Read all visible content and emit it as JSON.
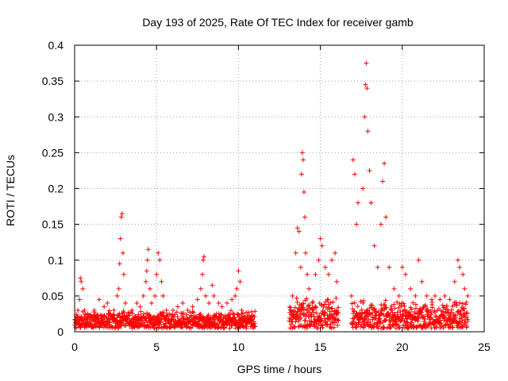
{
  "chart_data": {
    "type": "scatter",
    "title": "Day 193 of 2025, Rate Of TEC Index for receiver gamb",
    "xlabel": "GPS time / hours",
    "ylabel": "ROTI / TECUs",
    "xlim": [
      0,
      25
    ],
    "ylim": [
      0,
      0.4
    ],
    "xticks": [
      0,
      5,
      10,
      15,
      20,
      25
    ],
    "yticks": [
      0,
      0.05,
      0.1,
      0.15,
      0.2,
      0.25,
      0.3,
      0.35,
      0.4
    ],
    "xtick_labels": [
      "0",
      "5",
      "10",
      "15",
      "20",
      "25"
    ],
    "ytick_labels": [
      "0",
      "0.05",
      "0.1",
      "0.15",
      "0.2",
      "0.25",
      "0.3",
      "0.35",
      "0.4"
    ],
    "grid": true,
    "marker": "+",
    "color": "#ff0000",
    "series": [
      {
        "name": "ROTI",
        "points": [
          [
            0.1,
            0.02
          ],
          [
            0.2,
            0.03
          ],
          [
            0.3,
            0.045
          ],
          [
            0.35,
            0.075
          ],
          [
            0.4,
            0.07
          ],
          [
            0.5,
            0.06
          ],
          [
            0.6,
            0.03
          ],
          [
            0.8,
            0.025
          ],
          [
            1.0,
            0.02
          ],
          [
            1.2,
            0.03
          ],
          [
            1.5,
            0.045
          ],
          [
            1.8,
            0.035
          ],
          [
            2.0,
            0.04
          ],
          [
            2.2,
            0.025
          ],
          [
            2.4,
            0.03
          ],
          [
            2.6,
            0.05
          ],
          [
            2.7,
            0.06
          ],
          [
            2.75,
            0.095
          ],
          [
            2.8,
            0.13
          ],
          [
            2.85,
            0.16
          ],
          [
            2.9,
            0.165
          ],
          [
            2.95,
            0.11
          ],
          [
            3.0,
            0.08
          ],
          [
            3.1,
            0.04
          ],
          [
            3.3,
            0.025
          ],
          [
            3.5,
            0.03
          ],
          [
            3.8,
            0.04
          ],
          [
            4.0,
            0.035
          ],
          [
            4.2,
            0.05
          ],
          [
            4.35,
            0.07
          ],
          [
            4.4,
            0.085
          ],
          [
            4.45,
            0.1
          ],
          [
            4.5,
            0.115
          ],
          [
            4.6,
            0.06
          ],
          [
            4.7,
            0.04
          ],
          [
            4.9,
            0.05
          ],
          [
            5.0,
            0.08
          ],
          [
            5.1,
            0.11
          ],
          [
            5.2,
            0.1
          ],
          [
            5.3,
            0.07
          ],
          [
            5.4,
            0.05
          ],
          [
            5.6,
            0.03
          ],
          [
            5.8,
            0.025
          ],
          [
            6.0,
            0.03
          ],
          [
            6.3,
            0.035
          ],
          [
            6.6,
            0.04
          ],
          [
            6.9,
            0.03
          ],
          [
            7.2,
            0.035
          ],
          [
            7.5,
            0.045
          ],
          [
            7.7,
            0.06
          ],
          [
            7.8,
            0.08
          ],
          [
            7.85,
            0.1
          ],
          [
            7.9,
            0.105
          ],
          [
            8.0,
            0.05
          ],
          [
            8.2,
            0.04
          ],
          [
            8.4,
            0.065
          ],
          [
            8.5,
            0.05
          ],
          [
            8.8,
            0.04
          ],
          [
            9.0,
            0.035
          ],
          [
            9.3,
            0.04
          ],
          [
            9.6,
            0.045
          ],
          [
            9.8,
            0.05
          ],
          [
            9.9,
            0.06
          ],
          [
            10.0,
            0.085
          ],
          [
            10.1,
            0.07
          ],
          [
            10.2,
            0.03
          ],
          [
            10.4,
            0.02
          ],
          [
            10.6,
            0.015
          ],
          [
            10.8,
            0.015
          ],
          [
            11.0,
            0.012
          ],
          [
            13.1,
            0.015
          ],
          [
            13.3,
            0.05
          ],
          [
            13.5,
            0.11
          ],
          [
            13.6,
            0.145
          ],
          [
            13.7,
            0.14
          ],
          [
            13.8,
            0.09
          ],
          [
            13.85,
            0.22
          ],
          [
            13.9,
            0.25
          ],
          [
            13.95,
            0.24
          ],
          [
            14.0,
            0.195
          ],
          [
            14.05,
            0.16
          ],
          [
            14.1,
            0.11
          ],
          [
            14.2,
            0.08
          ],
          [
            14.3,
            0.06
          ],
          [
            14.5,
            0.04
          ],
          [
            14.7,
            0.08
          ],
          [
            14.9,
            0.1
          ],
          [
            15.0,
            0.13
          ],
          [
            15.1,
            0.12
          ],
          [
            15.3,
            0.09
          ],
          [
            15.5,
            0.08
          ],
          [
            15.7,
            0.1
          ],
          [
            15.9,
            0.11
          ],
          [
            16.0,
            0.07
          ],
          [
            16.9,
            0.05
          ],
          [
            17.0,
            0.24
          ],
          [
            17.1,
            0.22
          ],
          [
            17.2,
            0.15
          ],
          [
            17.3,
            0.18
          ],
          [
            17.6,
            0.2
          ],
          [
            17.7,
            0.3
          ],
          [
            17.75,
            0.345
          ],
          [
            17.8,
            0.375
          ],
          [
            17.85,
            0.34
          ],
          [
            17.9,
            0.28
          ],
          [
            18.0,
            0.225
          ],
          [
            18.1,
            0.18
          ],
          [
            18.3,
            0.12
          ],
          [
            18.5,
            0.09
          ],
          [
            18.7,
            0.15
          ],
          [
            18.8,
            0.21
          ],
          [
            18.9,
            0.235
          ],
          [
            19.0,
            0.16
          ],
          [
            19.2,
            0.09
          ],
          [
            19.5,
            0.06
          ],
          [
            19.8,
            0.05
          ],
          [
            20.0,
            0.09
          ],
          [
            20.2,
            0.08
          ],
          [
            20.5,
            0.06
          ],
          [
            20.8,
            0.05
          ],
          [
            21.0,
            0.1
          ],
          [
            21.2,
            0.07
          ],
          [
            21.5,
            0.05
          ],
          [
            21.8,
            0.045
          ],
          [
            22.0,
            0.05
          ],
          [
            22.3,
            0.045
          ],
          [
            22.6,
            0.05
          ],
          [
            22.9,
            0.045
          ],
          [
            23.2,
            0.07
          ],
          [
            23.4,
            0.1
          ],
          [
            23.5,
            0.09
          ],
          [
            23.7,
            0.08
          ],
          [
            23.8,
            0.06
          ],
          [
            24.0,
            0.05
          ]
        ]
      }
    ],
    "dense_bands": [
      {
        "x_start": 0.0,
        "x_end": 11.0,
        "y_low": 0.005,
        "y_high": 0.03
      },
      {
        "x_start": 13.1,
        "x_end": 16.1,
        "y_low": 0.005,
        "y_high": 0.05
      },
      {
        "x_start": 16.9,
        "x_end": 24.0,
        "y_low": 0.005,
        "y_high": 0.045
      }
    ]
  }
}
